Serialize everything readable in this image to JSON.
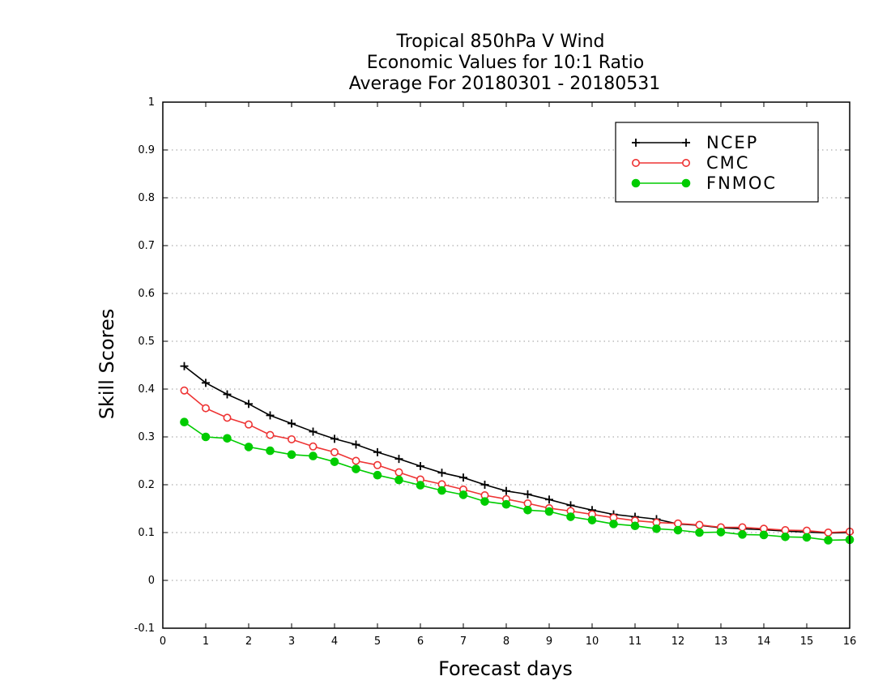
{
  "chart_data": {
    "type": "line",
    "title_lines": [
      "Tropical 850hPa V Wind",
      "Economic Values for 10:1 Ratio",
      "Average For 20180301 - 20180531"
    ],
    "xlabel": "Forecast days",
    "ylabel": "Skill Scores",
    "xlim": [
      0,
      16
    ],
    "ylim": [
      -0.1,
      1
    ],
    "x_ticks": [
      0,
      1,
      2,
      3,
      4,
      5,
      6,
      7,
      8,
      9,
      10,
      11,
      12,
      13,
      14,
      15,
      16
    ],
    "x_tick_labels": [
      "0",
      "1",
      "2",
      "3",
      "4",
      "5",
      "6",
      "7",
      "8",
      "9",
      "10",
      "11",
      "12",
      "13",
      "14",
      "15",
      "16"
    ],
    "y_ticks": [
      -0.1,
      0,
      0.1,
      0.2,
      0.3,
      0.4,
      0.5,
      0.6,
      0.7,
      0.8,
      0.9,
      1
    ],
    "y_tick_labels": [
      "-0.1",
      "0",
      "0.1",
      "0.2",
      "0.3",
      "0.4",
      "0.5",
      "0.6",
      "0.7",
      "0.8",
      "0.9",
      "1"
    ],
    "grid": "horizontal-dotted",
    "legend_position": "top-right",
    "x": [
      0.5,
      1.0,
      1.5,
      2.0,
      2.5,
      3.0,
      3.5,
      4.0,
      4.5,
      5.0,
      5.5,
      6.0,
      6.5,
      7.0,
      7.5,
      8.0,
      8.5,
      9.0,
      9.5,
      10.0,
      10.5,
      11.0,
      11.5,
      12.0,
      12.5,
      13.0,
      13.5,
      14.0,
      14.5,
      15.0,
      15.5,
      16.0
    ],
    "series": [
      {
        "name": "NCEP",
        "color": "#000000",
        "marker": "plus",
        "values": [
          0.448,
          0.413,
          0.389,
          0.369,
          0.345,
          0.328,
          0.311,
          0.296,
          0.284,
          0.268,
          0.254,
          0.239,
          0.225,
          0.215,
          0.2,
          0.187,
          0.18,
          0.169,
          0.157,
          0.147,
          0.138,
          0.133,
          0.128,
          0.118,
          0.115,
          0.11,
          0.108,
          0.106,
          0.103,
          0.101,
          0.099,
          0.1
        ]
      },
      {
        "name": "CMC",
        "color": "#ee3333",
        "marker": "open-circle",
        "values": [
          0.397,
          0.36,
          0.34,
          0.326,
          0.304,
          0.295,
          0.28,
          0.268,
          0.25,
          0.241,
          0.226,
          0.211,
          0.201,
          0.19,
          0.178,
          0.17,
          0.161,
          0.151,
          0.145,
          0.138,
          0.131,
          0.125,
          0.121,
          0.119,
          0.116,
          0.111,
          0.111,
          0.108,
          0.105,
          0.104,
          0.1,
          0.102
        ]
      },
      {
        "name": "FNMOC",
        "color": "#00cc00",
        "marker": "filled-circle",
        "values": [
          0.331,
          0.3,
          0.297,
          0.279,
          0.271,
          0.263,
          0.26,
          0.248,
          0.233,
          0.22,
          0.21,
          0.199,
          0.188,
          0.179,
          0.165,
          0.159,
          0.147,
          0.144,
          0.133,
          0.126,
          0.118,
          0.114,
          0.108,
          0.105,
          0.1,
          0.101,
          0.096,
          0.095,
          0.091,
          0.09,
          0.084,
          0.085
        ]
      }
    ]
  }
}
